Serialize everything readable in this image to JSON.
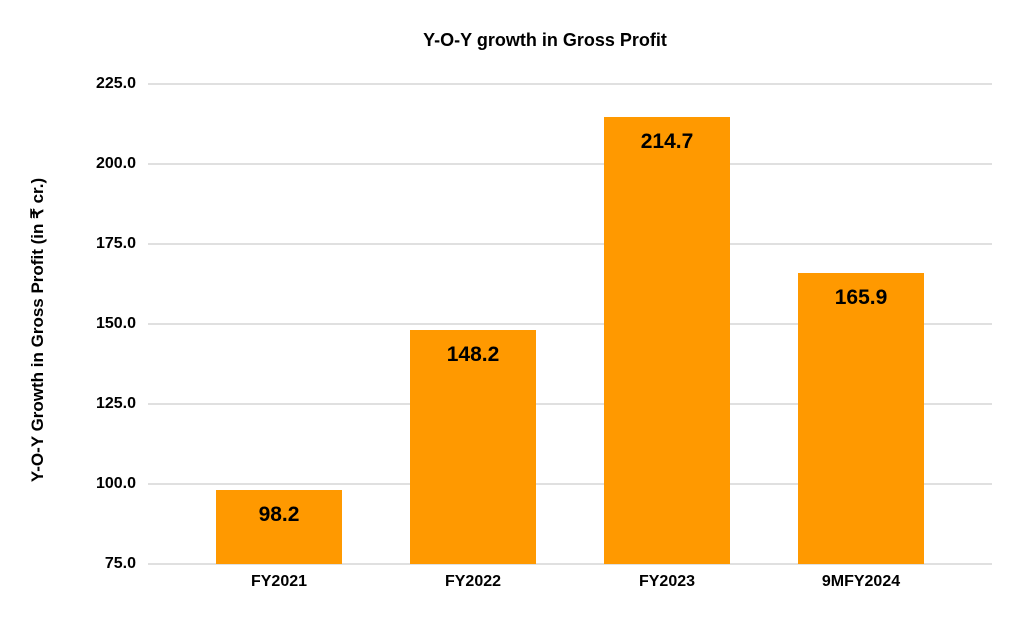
{
  "chart_data": {
    "type": "bar",
    "title": "Y-O-Y growth in Gross Profit",
    "ylabel": "Y-O-Y Growth in Gross Profit (in ₹ cr.)",
    "xlabel": "",
    "categories": [
      "FY2021",
      "FY2022",
      "FY2023",
      "9MFY2024"
    ],
    "values": [
      98.2,
      148.2,
      214.7,
      165.9
    ],
    "data_labels": [
      "98.2",
      "148.2",
      "214.7",
      "165.9"
    ],
    "ylim": [
      75,
      225
    ],
    "ytick_step": 25,
    "yticks": [
      "225.0",
      "200.0",
      "175.0",
      "150.0",
      "125.0",
      "100.0",
      "75.0"
    ],
    "grid": true,
    "legend": false,
    "colors": {
      "bar": "#FF9900",
      "gridline": "#E0E0E0",
      "text": "#000000",
      "background": "#FFFFFF"
    }
  }
}
